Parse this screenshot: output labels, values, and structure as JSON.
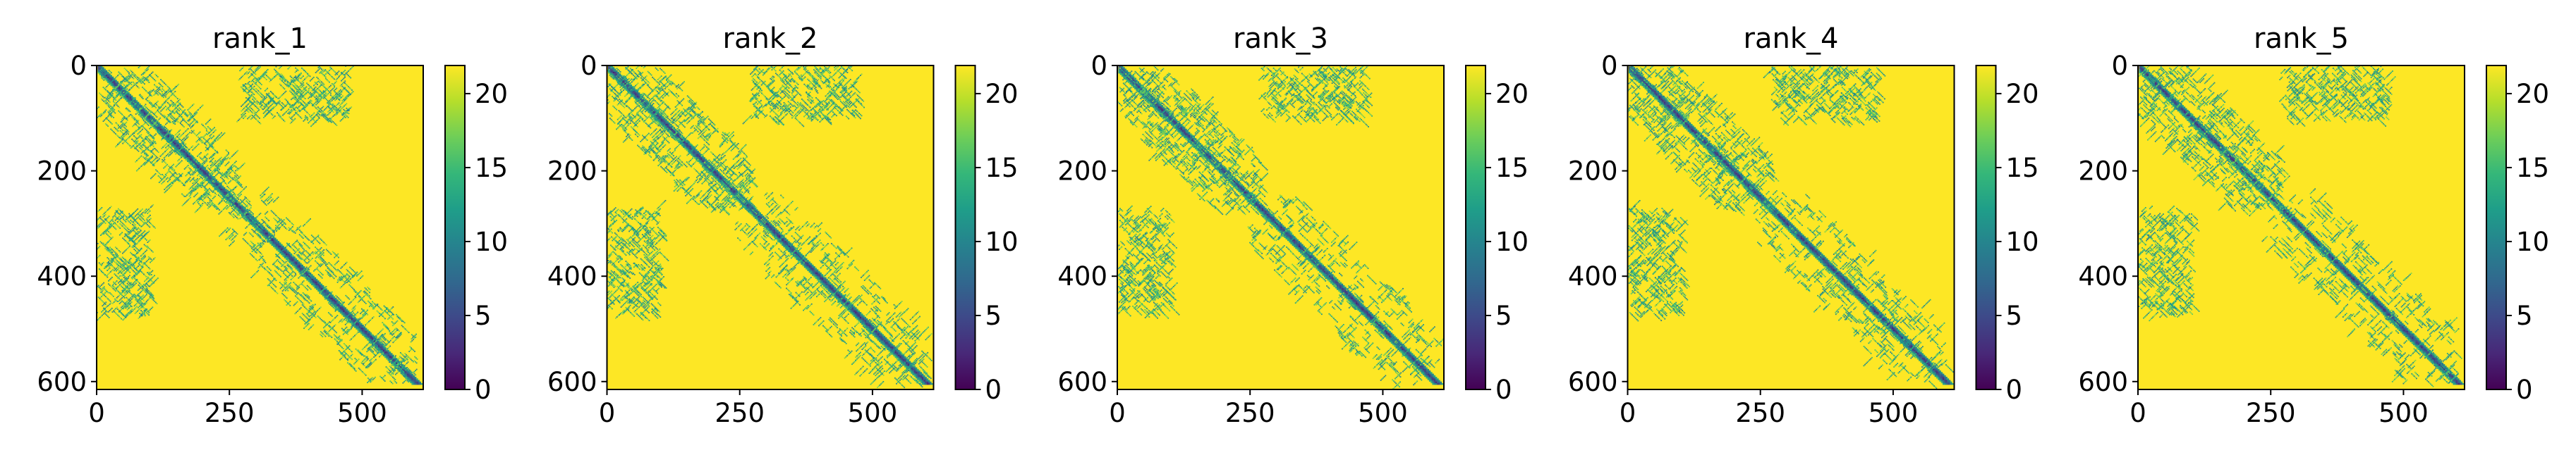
{
  "chart_data": [
    {
      "type": "heatmap",
      "title": "rank_1",
      "xlim": [
        0,
        615
      ],
      "ylim": [
        615,
        0
      ],
      "x_ticks": [
        0,
        250,
        500
      ],
      "y_ticks": [
        0,
        200,
        400,
        600
      ],
      "colorbar": {
        "min": 0,
        "max": 21.9,
        "ticks": [
          0,
          5,
          10,
          15,
          20
        ],
        "colormap": "viridis"
      },
      "contact_blocks": [
        {
          "x": [
            0,
            270
          ],
          "y": [
            0,
            270
          ],
          "level": "intra-domain"
        },
        {
          "x": [
            240,
            600
          ],
          "y": [
            240,
            600
          ],
          "level": "intra-domain"
        },
        {
          "x": [
            0,
            100
          ],
          "y": [
            270,
            470
          ],
          "level": "inter-domain"
        },
        {
          "x": [
            270,
            470
          ],
          "y": [
            0,
            100
          ],
          "level": "inter-domain"
        }
      ]
    },
    {
      "type": "heatmap",
      "title": "rank_2",
      "xlim": [
        0,
        615
      ],
      "ylim": [
        615,
        0
      ],
      "x_ticks": [
        0,
        250,
        500
      ],
      "y_ticks": [
        0,
        200,
        400,
        600
      ],
      "colorbar": {
        "min": 0,
        "max": 21.9,
        "ticks": [
          0,
          5,
          10,
          15,
          20
        ],
        "colormap": "viridis"
      },
      "contact_blocks": [
        {
          "x": [
            0,
            270
          ],
          "y": [
            0,
            270
          ],
          "level": "intra-domain"
        },
        {
          "x": [
            240,
            600
          ],
          "y": [
            240,
            600
          ],
          "level": "intra-domain"
        },
        {
          "x": [
            0,
            100
          ],
          "y": [
            270,
            470
          ],
          "level": "inter-domain"
        },
        {
          "x": [
            270,
            470
          ],
          "y": [
            0,
            100
          ],
          "level": "inter-domain"
        }
      ]
    },
    {
      "type": "heatmap",
      "title": "rank_3",
      "xlim": [
        0,
        615
      ],
      "ylim": [
        615,
        0
      ],
      "x_ticks": [
        0,
        250,
        500
      ],
      "y_ticks": [
        0,
        200,
        400,
        600
      ],
      "colorbar": {
        "min": 0,
        "max": 21.9,
        "ticks": [
          0,
          5,
          10,
          15,
          20
        ],
        "colormap": "viridis"
      },
      "contact_blocks": [
        {
          "x": [
            0,
            270
          ],
          "y": [
            0,
            270
          ],
          "level": "intra-domain"
        },
        {
          "x": [
            240,
            600
          ],
          "y": [
            240,
            600
          ],
          "level": "intra-domain"
        },
        {
          "x": [
            0,
            100
          ],
          "y": [
            270,
            470
          ],
          "level": "inter-domain"
        },
        {
          "x": [
            270,
            470
          ],
          "y": [
            0,
            100
          ],
          "level": "inter-domain"
        }
      ]
    },
    {
      "type": "heatmap",
      "title": "rank_4",
      "xlim": [
        0,
        615
      ],
      "ylim": [
        615,
        0
      ],
      "x_ticks": [
        0,
        250,
        500
      ],
      "y_ticks": [
        0,
        200,
        400,
        600
      ],
      "colorbar": {
        "min": 0,
        "max": 21.9,
        "ticks": [
          0,
          5,
          10,
          15,
          20
        ],
        "colormap": "viridis"
      },
      "contact_blocks": [
        {
          "x": [
            0,
            270
          ],
          "y": [
            0,
            270
          ],
          "level": "intra-domain"
        },
        {
          "x": [
            240,
            600
          ],
          "y": [
            240,
            600
          ],
          "level": "intra-domain"
        },
        {
          "x": [
            0,
            100
          ],
          "y": [
            270,
            470
          ],
          "level": "inter-domain"
        },
        {
          "x": [
            270,
            470
          ],
          "y": [
            0,
            100
          ],
          "level": "inter-domain"
        }
      ]
    },
    {
      "type": "heatmap",
      "title": "rank_5",
      "xlim": [
        0,
        615
      ],
      "ylim": [
        615,
        0
      ],
      "x_ticks": [
        0,
        250,
        500
      ],
      "y_ticks": [
        0,
        200,
        400,
        600
      ],
      "colorbar": {
        "min": 0,
        "max": 21.9,
        "ticks": [
          0,
          5,
          10,
          15,
          20
        ],
        "colormap": "viridis"
      },
      "contact_blocks": [
        {
          "x": [
            0,
            270
          ],
          "y": [
            0,
            270
          ],
          "level": "intra-domain"
        },
        {
          "x": [
            240,
            600
          ],
          "y": [
            240,
            600
          ],
          "level": "intra-domain"
        },
        {
          "x": [
            0,
            100
          ],
          "y": [
            270,
            470
          ],
          "level": "inter-domain"
        },
        {
          "x": [
            270,
            470
          ],
          "y": [
            0,
            100
          ],
          "level": "inter-domain"
        }
      ]
    }
  ],
  "colors": {
    "background_max": "#fde725",
    "colormap_stops": [
      "#440154",
      "#482878",
      "#3e4989",
      "#31688e",
      "#26828e",
      "#1f9e89",
      "#35b779",
      "#6ece58",
      "#b5de2b",
      "#fde725"
    ]
  }
}
